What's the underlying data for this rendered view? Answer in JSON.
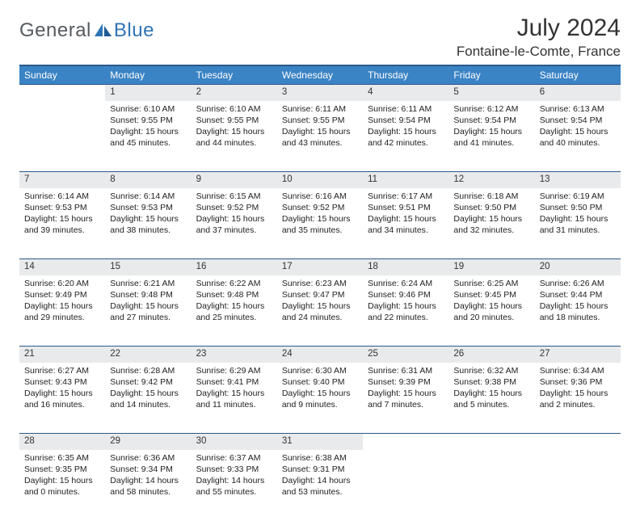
{
  "logo": {
    "text1": "General",
    "text2": "Blue"
  },
  "title": "July 2024",
  "location": "Fontaine-le-Comte, France",
  "colors": {
    "header_bg": "#3a83c4",
    "header_border": "#2a5a8a",
    "daynum_bg": "#e9eaeb",
    "logo_gray": "#555a5f",
    "logo_blue": "#2f74b5"
  },
  "weekdays": [
    "Sunday",
    "Monday",
    "Tuesday",
    "Wednesday",
    "Thursday",
    "Friday",
    "Saturday"
  ],
  "weeks": [
    [
      null,
      {
        "n": "1",
        "sr": "6:10 AM",
        "ss": "9:55 PM",
        "dl": "15 hours and 45 minutes."
      },
      {
        "n": "2",
        "sr": "6:10 AM",
        "ss": "9:55 PM",
        "dl": "15 hours and 44 minutes."
      },
      {
        "n": "3",
        "sr": "6:11 AM",
        "ss": "9:55 PM",
        "dl": "15 hours and 43 minutes."
      },
      {
        "n": "4",
        "sr": "6:11 AM",
        "ss": "9:54 PM",
        "dl": "15 hours and 42 minutes."
      },
      {
        "n": "5",
        "sr": "6:12 AM",
        "ss": "9:54 PM",
        "dl": "15 hours and 41 minutes."
      },
      {
        "n": "6",
        "sr": "6:13 AM",
        "ss": "9:54 PM",
        "dl": "15 hours and 40 minutes."
      }
    ],
    [
      {
        "n": "7",
        "sr": "6:14 AM",
        "ss": "9:53 PM",
        "dl": "15 hours and 39 minutes."
      },
      {
        "n": "8",
        "sr": "6:14 AM",
        "ss": "9:53 PM",
        "dl": "15 hours and 38 minutes."
      },
      {
        "n": "9",
        "sr": "6:15 AM",
        "ss": "9:52 PM",
        "dl": "15 hours and 37 minutes."
      },
      {
        "n": "10",
        "sr": "6:16 AM",
        "ss": "9:52 PM",
        "dl": "15 hours and 35 minutes."
      },
      {
        "n": "11",
        "sr": "6:17 AM",
        "ss": "9:51 PM",
        "dl": "15 hours and 34 minutes."
      },
      {
        "n": "12",
        "sr": "6:18 AM",
        "ss": "9:50 PM",
        "dl": "15 hours and 32 minutes."
      },
      {
        "n": "13",
        "sr": "6:19 AM",
        "ss": "9:50 PM",
        "dl": "15 hours and 31 minutes."
      }
    ],
    [
      {
        "n": "14",
        "sr": "6:20 AM",
        "ss": "9:49 PM",
        "dl": "15 hours and 29 minutes."
      },
      {
        "n": "15",
        "sr": "6:21 AM",
        "ss": "9:48 PM",
        "dl": "15 hours and 27 minutes."
      },
      {
        "n": "16",
        "sr": "6:22 AM",
        "ss": "9:48 PM",
        "dl": "15 hours and 25 minutes."
      },
      {
        "n": "17",
        "sr": "6:23 AM",
        "ss": "9:47 PM",
        "dl": "15 hours and 24 minutes."
      },
      {
        "n": "18",
        "sr": "6:24 AM",
        "ss": "9:46 PM",
        "dl": "15 hours and 22 minutes."
      },
      {
        "n": "19",
        "sr": "6:25 AM",
        "ss": "9:45 PM",
        "dl": "15 hours and 20 minutes."
      },
      {
        "n": "20",
        "sr": "6:26 AM",
        "ss": "9:44 PM",
        "dl": "15 hours and 18 minutes."
      }
    ],
    [
      {
        "n": "21",
        "sr": "6:27 AM",
        "ss": "9:43 PM",
        "dl": "15 hours and 16 minutes."
      },
      {
        "n": "22",
        "sr": "6:28 AM",
        "ss": "9:42 PM",
        "dl": "15 hours and 14 minutes."
      },
      {
        "n": "23",
        "sr": "6:29 AM",
        "ss": "9:41 PM",
        "dl": "15 hours and 11 minutes."
      },
      {
        "n": "24",
        "sr": "6:30 AM",
        "ss": "9:40 PM",
        "dl": "15 hours and 9 minutes."
      },
      {
        "n": "25",
        "sr": "6:31 AM",
        "ss": "9:39 PM",
        "dl": "15 hours and 7 minutes."
      },
      {
        "n": "26",
        "sr": "6:32 AM",
        "ss": "9:38 PM",
        "dl": "15 hours and 5 minutes."
      },
      {
        "n": "27",
        "sr": "6:34 AM",
        "ss": "9:36 PM",
        "dl": "15 hours and 2 minutes."
      }
    ],
    [
      {
        "n": "28",
        "sr": "6:35 AM",
        "ss": "9:35 PM",
        "dl": "15 hours and 0 minutes."
      },
      {
        "n": "29",
        "sr": "6:36 AM",
        "ss": "9:34 PM",
        "dl": "14 hours and 58 minutes."
      },
      {
        "n": "30",
        "sr": "6:37 AM",
        "ss": "9:33 PM",
        "dl": "14 hours and 55 minutes."
      },
      {
        "n": "31",
        "sr": "6:38 AM",
        "ss": "9:31 PM",
        "dl": "14 hours and 53 minutes."
      },
      null,
      null,
      null
    ]
  ],
  "labels": {
    "sunrise": "Sunrise:",
    "sunset": "Sunset:",
    "daylight": "Daylight:"
  }
}
